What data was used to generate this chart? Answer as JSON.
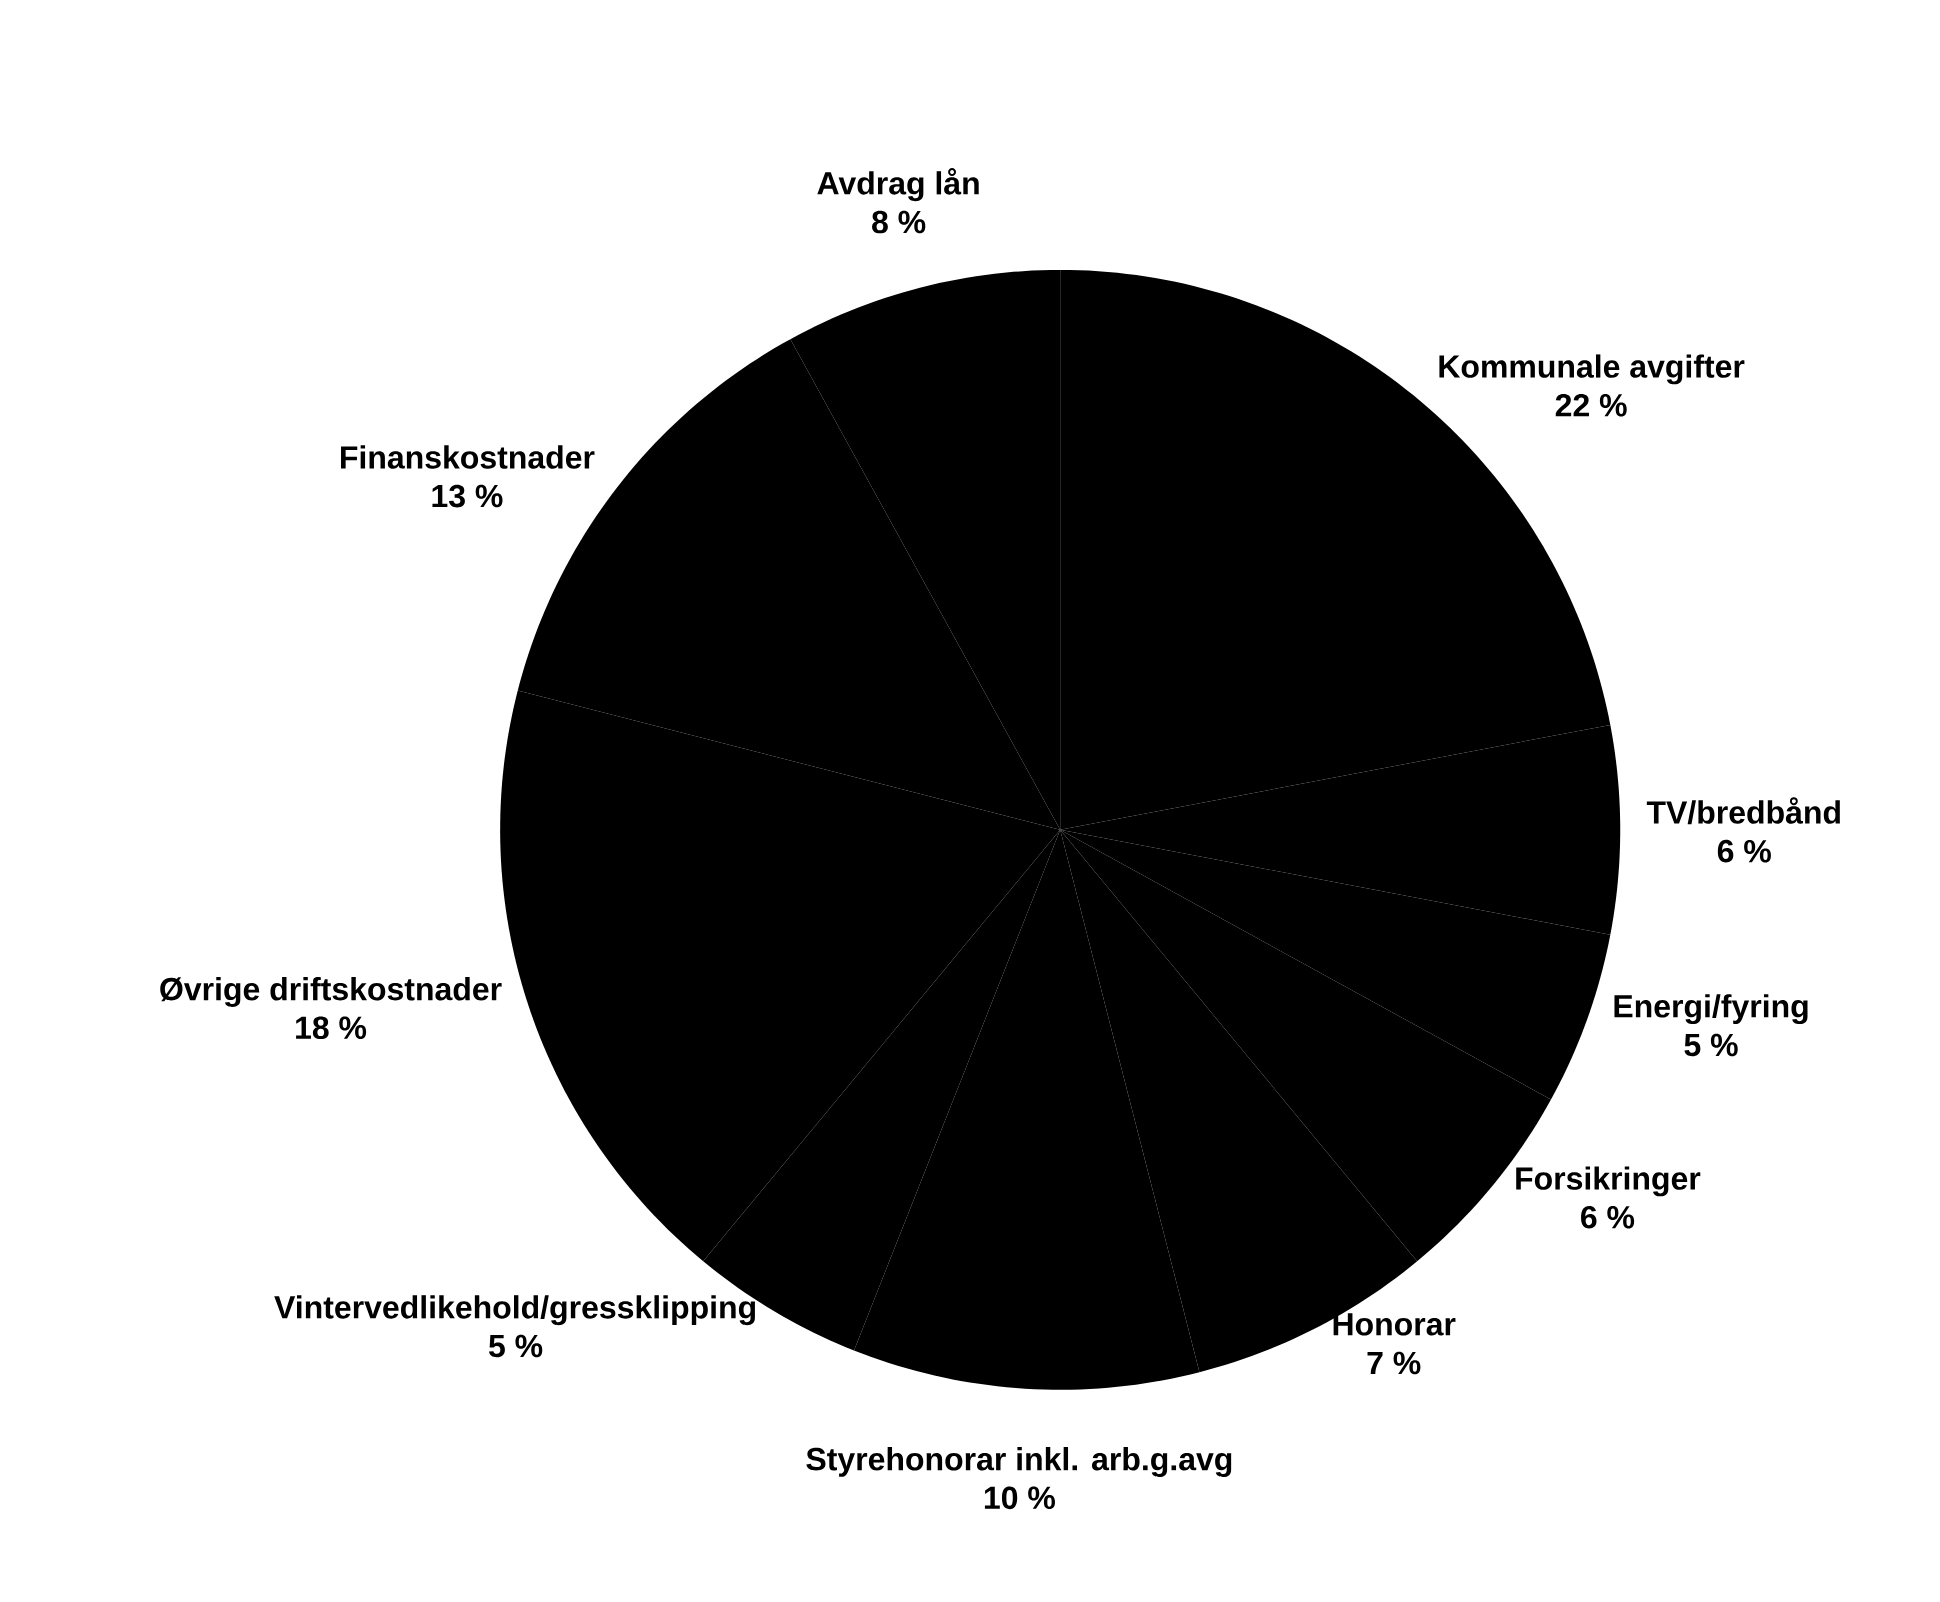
{
  "chart_data": {
    "type": "pie",
    "categories": [
      "Kommunale avgifter",
      "TV/bredbånd",
      "Energi/fyring",
      "Forsikringer",
      "Honorar",
      "Styrehonorar inkl. arb.g.avg",
      "Vintervedlikehold/gressklipping",
      "Øvrige driftskostnader",
      "Finanskostnader",
      "Avdrag lån"
    ],
    "values": [
      22,
      6,
      5,
      6,
      7,
      10,
      5,
      18,
      13,
      8
    ],
    "value_labels": [
      "22 %",
      "6 %",
      "5 %",
      "6 %",
      "7 %",
      "10 %",
      "5 %",
      "18 %",
      "13 %",
      "8 %"
    ],
    "colors": [
      "#000000",
      "#000000",
      "#000000",
      "#000000",
      "#000000",
      "#000000",
      "#000000",
      "#000000",
      "#000000",
      "#000000"
    ]
  }
}
